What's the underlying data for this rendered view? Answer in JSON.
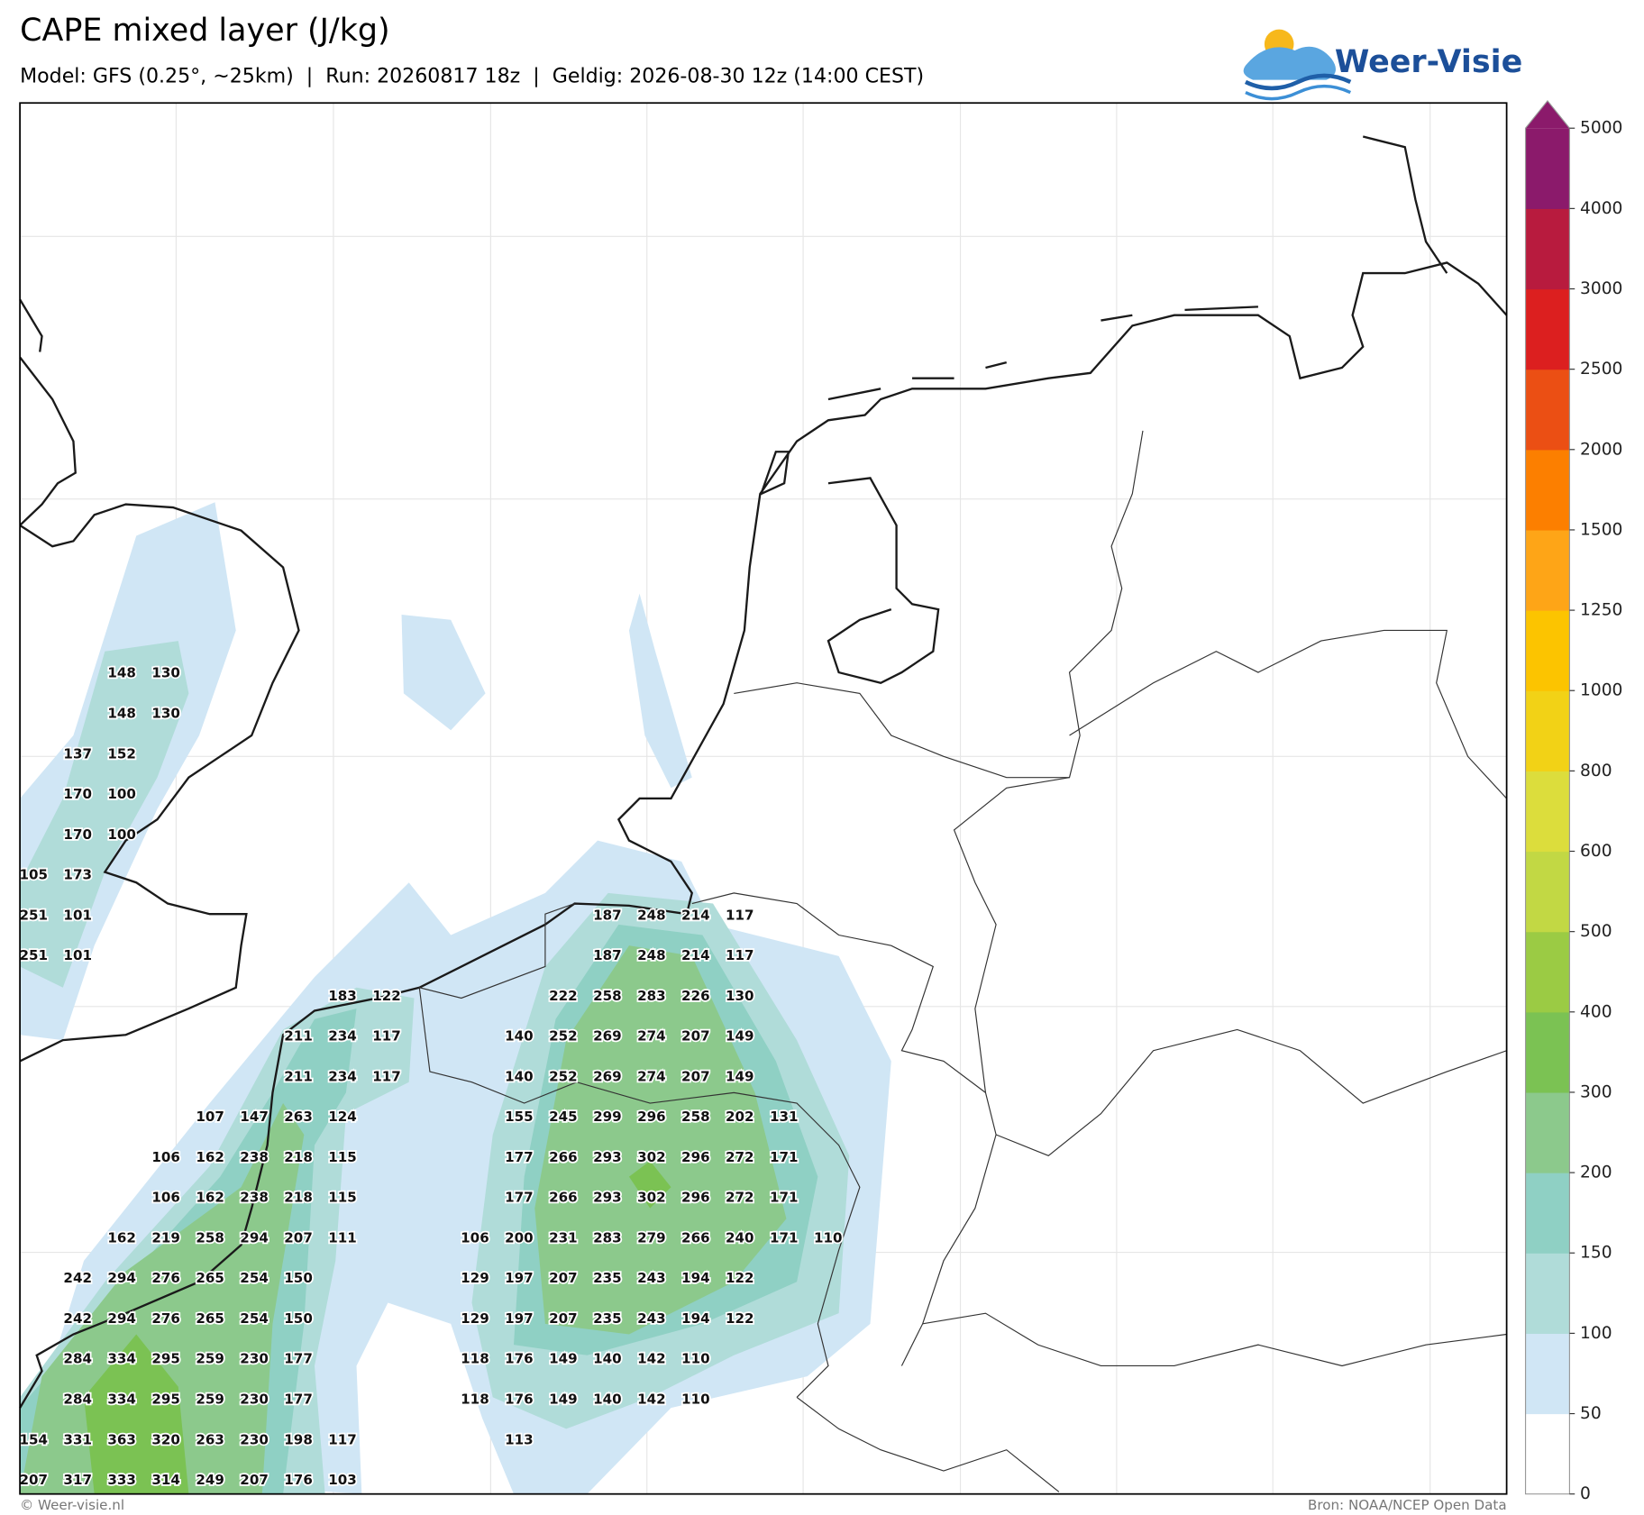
{
  "header": {
    "title": "CAPE mixed layer (J/kg)",
    "subtitle": "Model: GFS (0.25°, ~25km)  |  Run: 20260817 18z  |  Geldig: 2026-08-30 12z (14:00 CEST)",
    "logo": "Weer-Visie"
  },
  "footer": {
    "copyright": "© Weer-visie.nl",
    "source": "Bron: NOAA/NCEP Open Data"
  },
  "colorbar": {
    "ticks": [
      0,
      50,
      100,
      150,
      200,
      300,
      400,
      500,
      600,
      800,
      1000,
      1250,
      1500,
      2000,
      2500,
      3000,
      4000,
      5000
    ],
    "colors": [
      "#ffffff",
      "#d0e6f5",
      "#b0dcd9",
      "#8fd0c4",
      "#8cc98c",
      "#7bc253",
      "#9bcb44",
      "#c2d844",
      "#dcdd3c",
      "#f2d216",
      "#fcc400",
      "#fea517",
      "#fc7f00",
      "#eb4f14",
      "#dc1f1f",
      "#b81b3e",
      "#8b1a6b"
    ]
  },
  "map_labels": {
    "rows": [
      [
        null,
        null,
        148,
        130,
        null,
        null,
        null,
        null,
        null,
        null,
        null,
        null,
        null,
        null,
        null,
        null,
        null,
        null,
        null
      ],
      [
        null,
        null,
        148,
        130,
        null,
        null,
        null,
        null,
        null,
        null,
        null,
        null,
        null,
        null,
        null,
        null,
        null,
        null,
        null
      ],
      [
        null,
        137,
        152,
        null,
        null,
        null,
        null,
        null,
        null,
        null,
        null,
        null,
        null,
        null,
        null,
        null,
        null,
        null,
        null
      ],
      [
        null,
        170,
        100,
        null,
        null,
        null,
        null,
        null,
        null,
        null,
        null,
        null,
        null,
        null,
        null,
        null,
        null,
        null,
        null
      ],
      [
        null,
        170,
        100,
        null,
        null,
        null,
        null,
        null,
        null,
        null,
        null,
        null,
        null,
        null,
        null,
        null,
        null,
        null,
        null
      ],
      [
        105,
        173,
        null,
        null,
        null,
        null,
        null,
        null,
        null,
        null,
        null,
        null,
        null,
        null,
        null,
        null,
        null,
        null,
        null
      ],
      [
        251,
        101,
        null,
        null,
        null,
        null,
        null,
        null,
        null,
        null,
        null,
        null,
        null,
        187,
        248,
        214,
        117,
        null,
        null
      ],
      [
        251,
        101,
        null,
        null,
        null,
        null,
        null,
        null,
        null,
        null,
        null,
        null,
        null,
        187,
        248,
        214,
        117,
        null,
        null
      ],
      [
        null,
        null,
        null,
        null,
        null,
        null,
        null,
        183,
        122,
        null,
        null,
        null,
        222,
        258,
        283,
        226,
        130,
        null,
        null
      ],
      [
        null,
        null,
        null,
        null,
        null,
        null,
        211,
        234,
        117,
        null,
        null,
        140,
        252,
        269,
        274,
        207,
        149,
        null,
        null
      ],
      [
        null,
        null,
        null,
        null,
        null,
        null,
        211,
        234,
        117,
        null,
        null,
        140,
        252,
        269,
        274,
        207,
        149,
        null,
        null
      ],
      [
        null,
        null,
        null,
        null,
        107,
        147,
        263,
        124,
        null,
        null,
        null,
        155,
        245,
        299,
        296,
        258,
        202,
        131,
        null
      ],
      [
        null,
        null,
        null,
        106,
        162,
        238,
        218,
        115,
        null,
        null,
        null,
        177,
        266,
        293,
        302,
        296,
        272,
        171,
        null
      ],
      [
        null,
        null,
        null,
        106,
        162,
        238,
        218,
        115,
        null,
        null,
        null,
        177,
        266,
        293,
        302,
        296,
        272,
        171,
        null
      ],
      [
        null,
        null,
        162,
        219,
        258,
        294,
        207,
        111,
        null,
        null,
        106,
        200,
        231,
        283,
        279,
        266,
        240,
        171,
        110
      ],
      [
        null,
        242,
        294,
        276,
        265,
        254,
        150,
        null,
        null,
        null,
        129,
        197,
        207,
        235,
        243,
        194,
        122,
        null,
        null
      ],
      [
        null,
        242,
        294,
        276,
        265,
        254,
        150,
        null,
        null,
        null,
        129,
        197,
        207,
        235,
        243,
        194,
        122,
        null,
        null
      ],
      [
        null,
        284,
        334,
        295,
        259,
        230,
        177,
        null,
        null,
        null,
        118,
        176,
        149,
        140,
        142,
        110,
        null,
        null,
        null
      ],
      [
        null,
        284,
        334,
        295,
        259,
        230,
        177,
        null,
        null,
        null,
        118,
        176,
        149,
        140,
        142,
        110,
        null,
        null,
        null
      ],
      [
        154,
        331,
        363,
        320,
        263,
        230,
        198,
        117,
        null,
        null,
        null,
        113,
        null,
        null,
        null,
        null,
        null,
        null,
        null
      ],
      [
        207,
        317,
        333,
        314,
        249,
        207,
        176,
        103,
        null,
        null,
        null,
        null,
        null,
        null,
        null,
        null,
        null,
        null,
        null
      ]
    ]
  }
}
